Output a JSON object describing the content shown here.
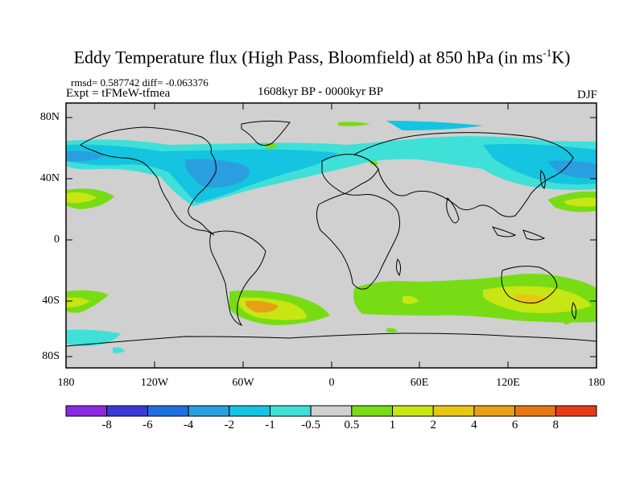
{
  "title_main": "Eddy Temperature flux (High Pass, Bloomfield) at 850 hPa (in ms",
  "title_sup": "-1",
  "title_end": "K)",
  "stats": "rmsd= 0.587742 diff= -0.063376",
  "expt": "Expt = tFMeW-tfmea",
  "period": "1608kyr BP - 0000kyr BP",
  "season": "DJF",
  "lat_labels": [
    "80N",
    "40N",
    "0",
    "40S",
    "80S"
  ],
  "lon_labels": [
    "180",
    "120W",
    "60W",
    "0",
    "60E",
    "120E",
    "180"
  ],
  "colorbar": {
    "labels": [
      "-8",
      "-6",
      "-4",
      "-2",
      "-1",
      "-0.5",
      "0.5",
      "1",
      "2",
      "4",
      "6",
      "8"
    ],
    "colors": [
      "#8a2be2",
      "#3a3ad8",
      "#1e6fe0",
      "#2a9fe0",
      "#14c4e0",
      "#3fe0d8",
      "#d0d0d0",
      "#78dc14",
      "#c8e614",
      "#e6c814",
      "#e6a014",
      "#e67814",
      "#e63c14"
    ]
  },
  "colors": {
    "land_gray": "#d0d0d0",
    "coast": "#000000"
  }
}
